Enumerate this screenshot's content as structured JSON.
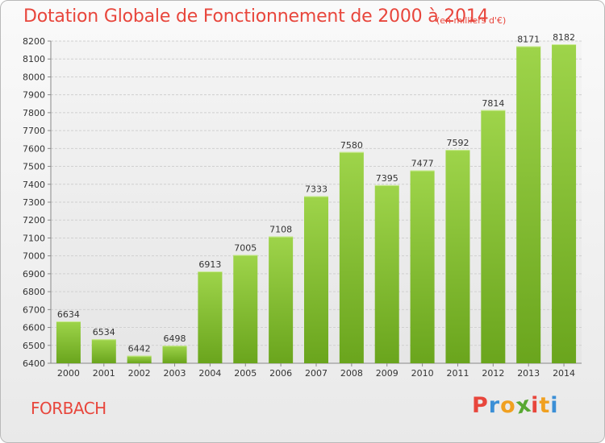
{
  "chart_data": {
    "type": "bar",
    "title": "Dotation Globale de Fonctionnement de 2000 à 2014",
    "subtitle": "(en milliers d'€)",
    "categories": [
      "2000",
      "2001",
      "2002",
      "2003",
      "2004",
      "2005",
      "2006",
      "2007",
      "2008",
      "2009",
      "2010",
      "2011",
      "2012",
      "2013",
      "2014"
    ],
    "values": [
      6634,
      6534,
      6442,
      6498,
      6913,
      7005,
      7108,
      7333,
      7580,
      7395,
      7477,
      7592,
      7814,
      8171,
      8182
    ],
    "ylim": [
      6400,
      8200
    ],
    "yticks": [
      6400,
      6500,
      6600,
      6700,
      6800,
      6900,
      7000,
      7100,
      7200,
      7300,
      7400,
      7500,
      7600,
      7700,
      7800,
      7900,
      8000,
      8100,
      8200
    ],
    "grid": true,
    "bar_color_top": "#9ed44a",
    "bar_color_bottom": "#6aa51d"
  },
  "footer": {
    "place": "FORBACH",
    "logo": {
      "letters": [
        "P",
        "r",
        "o",
        "x",
        "i",
        "t",
        "i"
      ],
      "colors": [
        "#e8463c",
        "#3b8fd6",
        "#f0a020",
        "#58a832",
        "#e8463c",
        "#f0a020",
        "#3b8fd6"
      ]
    }
  }
}
